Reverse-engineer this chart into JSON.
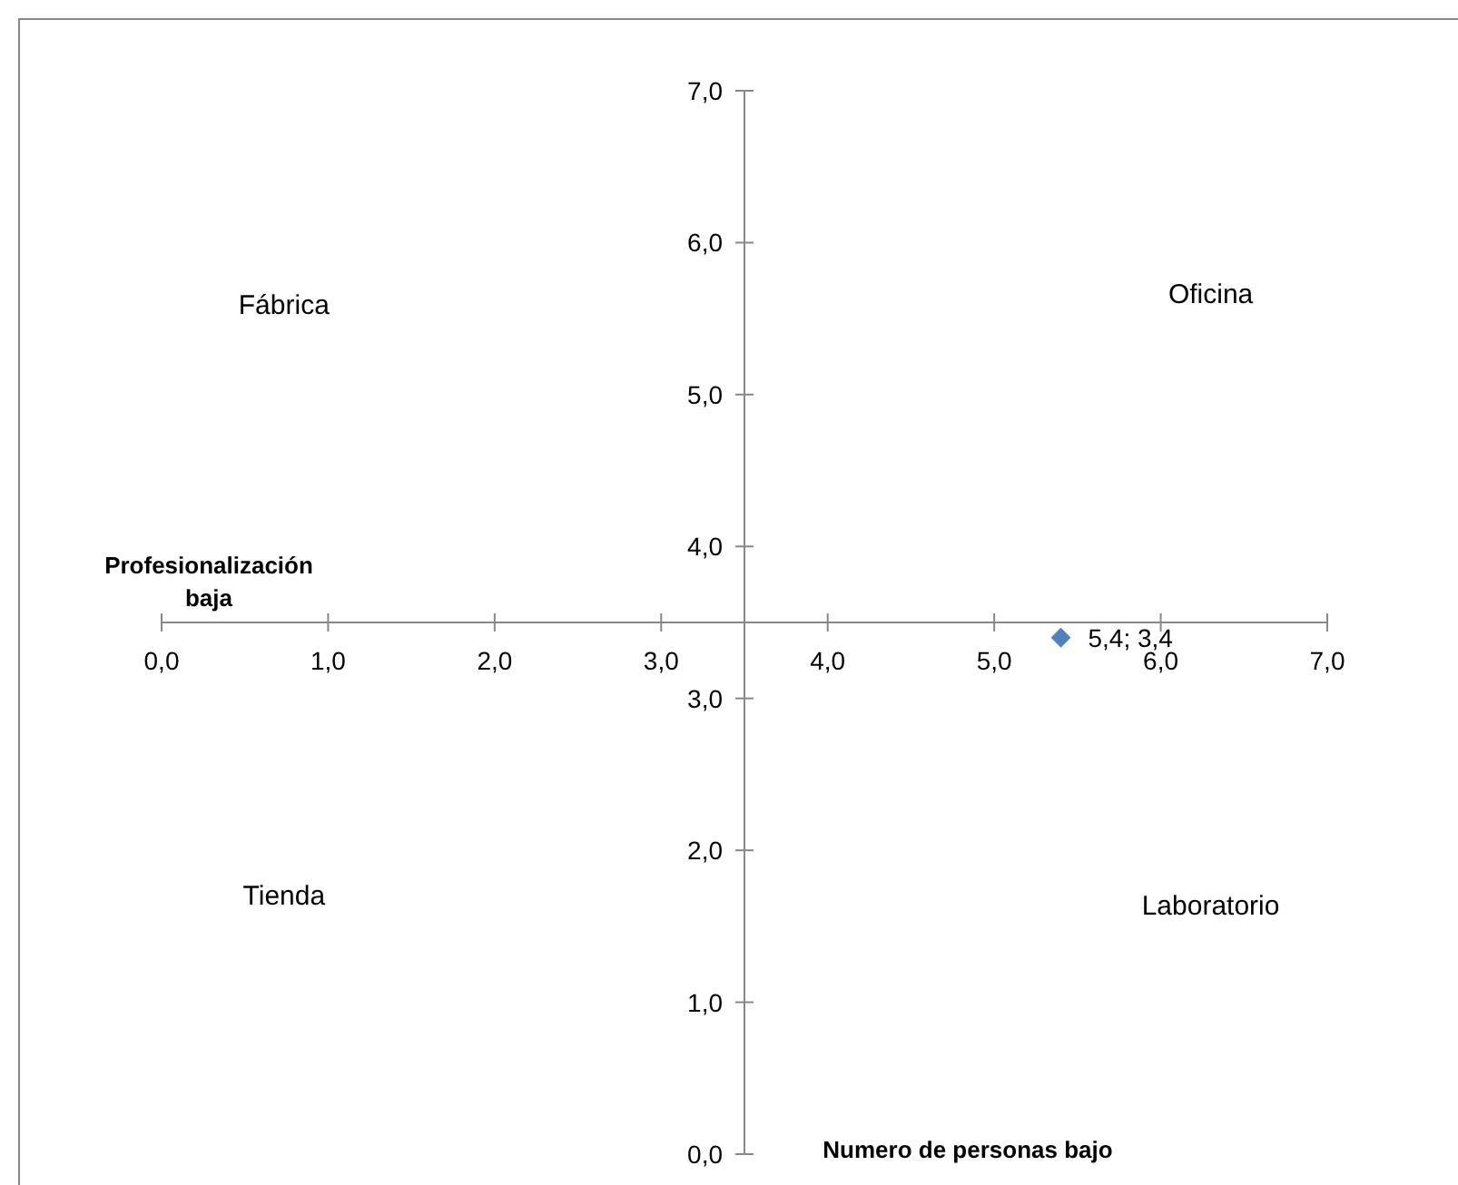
{
  "chart_data": {
    "type": "scatter",
    "xlabel": "Profesionalización baja",
    "ylabel": "Numero de personas bajo",
    "x": [
      5.4
    ],
    "values": [
      3.4
    ],
    "value_labels": [
      "5,4; 3,4"
    ],
    "color": "#4f81bd",
    "marker": "diamond",
    "xlim": [
      0,
      7
    ],
    "ylim": [
      0,
      7
    ],
    "xticks": [
      {
        "value": 0,
        "label": "0,0"
      },
      {
        "value": 1,
        "label": "1,0"
      },
      {
        "value": 2,
        "label": "2,0"
      },
      {
        "value": 3,
        "label": "3,0"
      },
      {
        "value": 4,
        "label": "4,0"
      },
      {
        "value": 5,
        "label": "5,0"
      },
      {
        "value": 6,
        "label": "6,0"
      },
      {
        "value": 7,
        "label": "7,0"
      }
    ],
    "yticks": [
      {
        "value": 0,
        "label": "0,0"
      },
      {
        "value": 1,
        "label": "1,0"
      },
      {
        "value": 2,
        "label": "2,0"
      },
      {
        "value": 3,
        "label": "3,0"
      },
      {
        "value": 4,
        "label": "4,0"
      },
      {
        "value": 5,
        "label": "5,0"
      },
      {
        "value": 6,
        "label": "6,0"
      },
      {
        "value": 7,
        "label": "7,0"
      }
    ],
    "annotations": [
      "Fábrica",
      "Oficina",
      "Tienda",
      "Laboratorio"
    ],
    "grid": false
  }
}
